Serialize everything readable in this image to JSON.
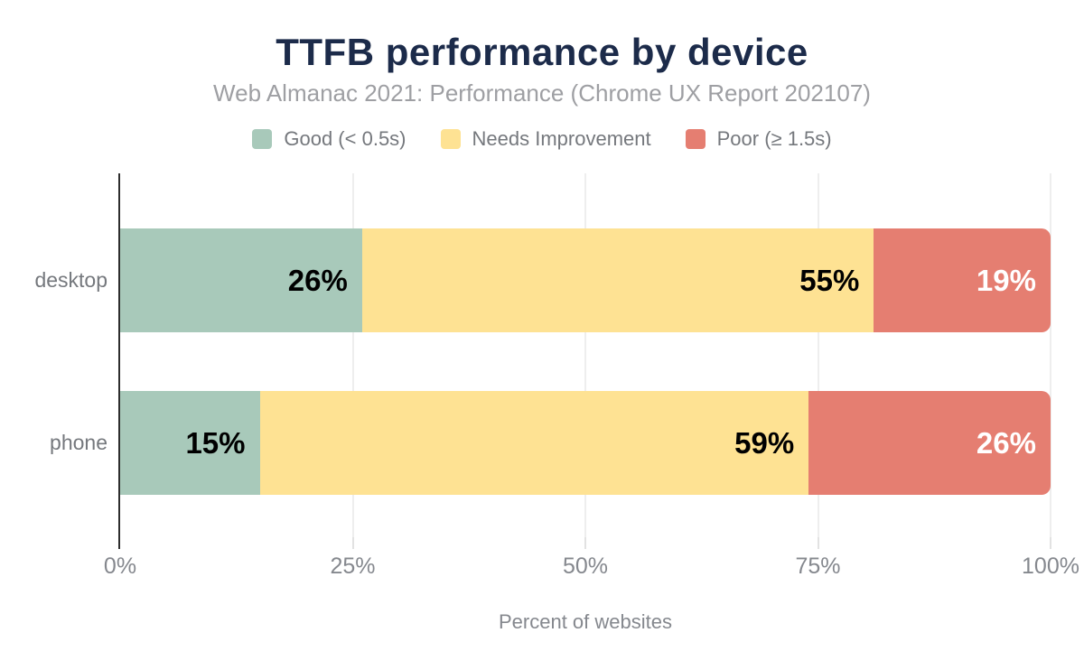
{
  "chart_data": {
    "type": "bar",
    "orientation": "horizontal",
    "stacked": true,
    "title": "TTFB performance by device",
    "subtitle": "Web Almanac 2021: Performance (Chrome UX Report 202107)",
    "xlabel": "Percent of websites",
    "categories": [
      "desktop",
      "phone"
    ],
    "series": [
      {
        "name": "Good (< 0.5s)",
        "color": "#a8c9ba",
        "label_color": "#000000",
        "values": [
          26,
          15
        ]
      },
      {
        "name": "Needs Improvement",
        "color": "#fee293",
        "label_color": "#000000",
        "values": [
          55,
          59
        ]
      },
      {
        "name": "Poor (≥ 1.5s)",
        "color": "#e57e71",
        "label_color": "#ffffff",
        "values": [
          19,
          26
        ]
      }
    ],
    "value_suffix": "%",
    "xlim": [
      0,
      100
    ],
    "x_ticks": [
      "0%",
      "25%",
      "50%",
      "75%",
      "100%"
    ],
    "grid": "vertical",
    "legend_position": "top",
    "colors": {
      "title": "#1c2b4a",
      "subtitle": "#9e9fa3",
      "axis_text": "#85888e",
      "axis_line": "#2d2d2d",
      "grid_line": "#eeeeee"
    }
  }
}
